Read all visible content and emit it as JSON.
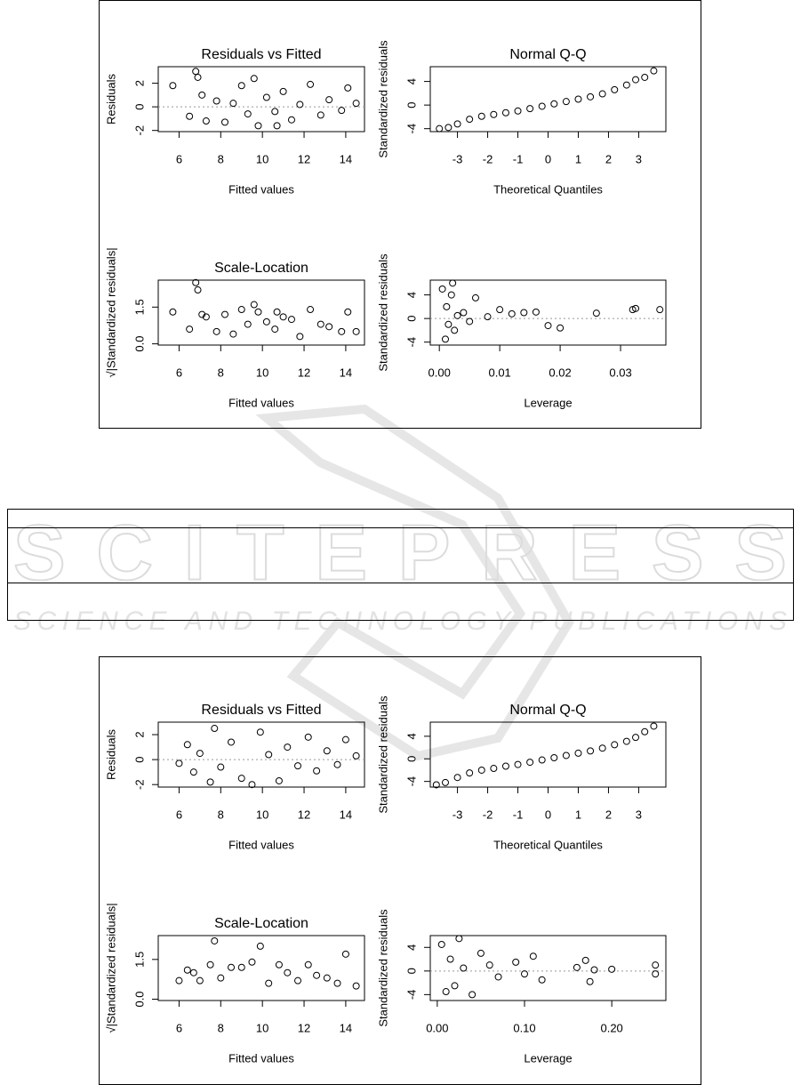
{
  "watermark": {
    "title": "SCITEPRESS",
    "subtitle": "SCIENCE AND TECHNOLOGY PUBLICATIONS"
  },
  "chart_data": [
    {
      "type": "scatter",
      "title": "Residuals vs Fitted",
      "x_label": "Fitted values",
      "y_label": "Residuals",
      "xlim": [
        5.0,
        14.9
      ],
      "ylim": [
        -2.1,
        3.4
      ],
      "xticks": [
        6,
        8,
        10,
        12,
        14
      ],
      "yticks": [
        -2,
        0,
        2
      ],
      "hline": 0,
      "x": [
        5.7,
        6.5,
        6.8,
        6.9,
        7.1,
        7.3,
        7.8,
        8.2,
        8.6,
        9.0,
        9.3,
        9.6,
        9.8,
        10.2,
        10.6,
        11.0,
        11.4,
        11.8,
        12.3,
        12.8,
        13.2,
        13.8,
        14.1,
        14.5,
        10.7
      ],
      "values": [
        1.8,
        -0.8,
        3.0,
        2.5,
        1.0,
        -1.2,
        0.5,
        -1.3,
        0.3,
        1.8,
        -0.6,
        2.4,
        -1.6,
        0.8,
        -0.4,
        1.3,
        -1.1,
        0.2,
        1.9,
        -0.7,
        0.6,
        -0.3,
        1.6,
        0.3,
        -1.6
      ]
    },
    {
      "type": "scatter",
      "title": "Normal Q-Q",
      "x_label": "Theoretical Quantiles",
      "y_label": "Standardized residuals",
      "xlim": [
        -3.9,
        3.9
      ],
      "ylim": [
        -4.5,
        6.5
      ],
      "xticks": [
        -3,
        -2,
        -1,
        0,
        1,
        2,
        3
      ],
      "yticks": [
        -4,
        0,
        4
      ],
      "x": [
        -3.6,
        -3.3,
        -3.0,
        -2.6,
        -2.2,
        -1.8,
        -1.4,
        -1,
        -0.6,
        -0.2,
        0.2,
        0.6,
        1,
        1.4,
        1.8,
        2.2,
        2.6,
        2.9,
        3.2,
        3.5
      ],
      "values": [
        -4.0,
        -3.8,
        -3.2,
        -2.4,
        -1.9,
        -1.6,
        -1.3,
        -1.0,
        -0.6,
        -0.2,
        0.2,
        0.6,
        1.0,
        1.4,
        1.9,
        2.6,
        3.4,
        4.3,
        4.7,
        5.8
      ]
    },
    {
      "type": "scatter",
      "title": "Scale-Location",
      "x_label": "Fitted values",
      "y_label": "√|Standardized residuals|",
      "xlim": [
        5.0,
        14.9
      ],
      "ylim": [
        -0.05,
        2.6
      ],
      "xticks": [
        6,
        8,
        10,
        12,
        14
      ],
      "yticks": [
        {
          "value": 0,
          "label": "0.0"
        },
        1.5
      ],
      "x": [
        5.7,
        6.5,
        6.8,
        6.9,
        7.1,
        7.3,
        7.8,
        8.2,
        8.6,
        9.0,
        9.3,
        9.6,
        9.8,
        10.2,
        10.6,
        11.0,
        11.4,
        11.8,
        12.3,
        12.8,
        13.2,
        13.8,
        14.1,
        14.5,
        10.7
      ],
      "values": [
        1.3,
        0.6,
        2.5,
        2.2,
        1.2,
        1.1,
        0.5,
        1.2,
        0.4,
        1.4,
        0.8,
        1.6,
        1.3,
        0.9,
        0.6,
        1.1,
        1.0,
        0.3,
        1.4,
        0.8,
        0.7,
        0.5,
        1.3,
        0.5,
        1.3
      ]
    },
    {
      "type": "scatter",
      "title": null,
      "x_label": "Leverage",
      "y_label": "Standardized residuals",
      "xlim": [
        -0.0015,
        0.0375
      ],
      "ylim": [
        -4.5,
        6.5
      ],
      "xticks": [
        {
          "value": 0,
          "label": "0.00"
        },
        0.01,
        0.02,
        0.03
      ],
      "yticks": [
        -4,
        0,
        4
      ],
      "hline": 0,
      "x": [
        0.0005,
        0.001,
        0.0012,
        0.0015,
        0.002,
        0.0022,
        0.0025,
        0.003,
        0.004,
        0.005,
        0.006,
        0.008,
        0.01,
        0.012,
        0.014,
        0.016,
        0.018,
        0.02,
        0.026,
        0.032,
        0.0325,
        0.0365
      ],
      "values": [
        5,
        -3.5,
        2,
        -1,
        4,
        6,
        -2,
        0.5,
        1,
        -0.5,
        3.5,
        0.3,
        1.5,
        0.8,
        1.0,
        1.1,
        -1.2,
        -1.6,
        0.9,
        1.5,
        1.7,
        1.5
      ]
    },
    {
      "type": "scatter",
      "title": "Residuals vs Fitted",
      "x_label": "Fitted values",
      "y_label": "Residuals",
      "xlim": [
        5.0,
        14.9
      ],
      "ylim": [
        -2.2,
        3.0
      ],
      "xticks": [
        6,
        8,
        10,
        12,
        14
      ],
      "yticks": [
        -2,
        0,
        2
      ],
      "hline": 0,
      "x": [
        6.0,
        6.4,
        6.7,
        7.0,
        7.5,
        7.7,
        8.0,
        8.5,
        9.0,
        9.5,
        9.9,
        10.3,
        10.8,
        11.2,
        11.7,
        12.2,
        12.6,
        13.1,
        13.6,
        14.0,
        14.5
      ],
      "values": [
        -0.3,
        1.2,
        -1.0,
        0.5,
        -1.8,
        2.5,
        -0.6,
        1.4,
        -1.5,
        -2.0,
        2.2,
        0.4,
        -1.7,
        1.0,
        -0.5,
        1.8,
        -0.9,
        0.7,
        -0.4,
        1.6,
        0.3
      ]
    },
    {
      "type": "scatter",
      "title": "Normal Q-Q",
      "x_label": "Theoretical Quantiles",
      "y_label": "Standardized residuals",
      "xlim": [
        -3.9,
        3.9
      ],
      "ylim": [
        -5.0,
        6.5
      ],
      "xticks": [
        -3,
        -2,
        -1,
        0,
        1,
        2,
        3
      ],
      "yticks": [
        -4,
        0,
        4
      ],
      "x": [
        -3.7,
        -3.4,
        -3.0,
        -2.6,
        -2.2,
        -1.8,
        -1.4,
        -1,
        -0.6,
        -0.2,
        0.2,
        0.6,
        1,
        1.4,
        1.8,
        2.2,
        2.6,
        2.9,
        3.2,
        3.5
      ],
      "values": [
        -4.6,
        -4.2,
        -3.3,
        -2.5,
        -2.0,
        -1.7,
        -1.3,
        -1.0,
        -0.6,
        -0.2,
        0.2,
        0.6,
        1.0,
        1.4,
        1.9,
        2.5,
        3.1,
        3.8,
        4.8,
        5.8
      ]
    },
    {
      "type": "scatter",
      "title": "Scale-Location",
      "x_label": "Fitted values",
      "y_label": "√|Standardized residuals|",
      "xlim": [
        5.0,
        14.9
      ],
      "ylim": [
        -0.05,
        2.4
      ],
      "xticks": [
        6,
        8,
        10,
        12,
        14
      ],
      "yticks": [
        {
          "value": 0,
          "label": "0.0"
        },
        1.5
      ],
      "x": [
        6.0,
        6.4,
        6.7,
        7.0,
        7.5,
        7.7,
        8.0,
        8.5,
        9.0,
        9.5,
        9.9,
        10.3,
        10.8,
        11.2,
        11.7,
        12.2,
        12.6,
        13.1,
        13.6,
        14.0,
        14.5
      ],
      "values": [
        0.7,
        1.1,
        1.0,
        0.7,
        1.3,
        2.2,
        0.8,
        1.2,
        1.2,
        1.4,
        2.0,
        0.6,
        1.3,
        1.0,
        0.7,
        1.3,
        0.9,
        0.8,
        0.6,
        1.7,
        0.5
      ]
    },
    {
      "type": "scatter",
      "title": null,
      "x_label": "Leverage",
      "y_label": "Standardized residuals",
      "xlim": [
        -0.008,
        0.262
      ],
      "ylim": [
        -5.0,
        6.0
      ],
      "xticks": [
        {
          "value": 0,
          "label": "0.00"
        },
        {
          "value": 0.1,
          "label": "0.10"
        },
        {
          "value": 0.2,
          "label": "0.20"
        }
      ],
      "yticks": [
        -4,
        0,
        4
      ],
      "hline": 0,
      "x": [
        0.005,
        0.01,
        0.015,
        0.02,
        0.025,
        0.03,
        0.04,
        0.05,
        0.06,
        0.07,
        0.09,
        0.1,
        0.11,
        0.12,
        0.16,
        0.17,
        0.175,
        0.18,
        0.2,
        0.25,
        0.25
      ],
      "values": [
        4.5,
        -3.5,
        2,
        -2.5,
        5.5,
        0.5,
        -4,
        3,
        1,
        -1,
        1.5,
        -0.5,
        2.5,
        -1.5,
        0.6,
        1.8,
        -1.8,
        0.2,
        0.3,
        1.0,
        -0.5
      ]
    }
  ]
}
